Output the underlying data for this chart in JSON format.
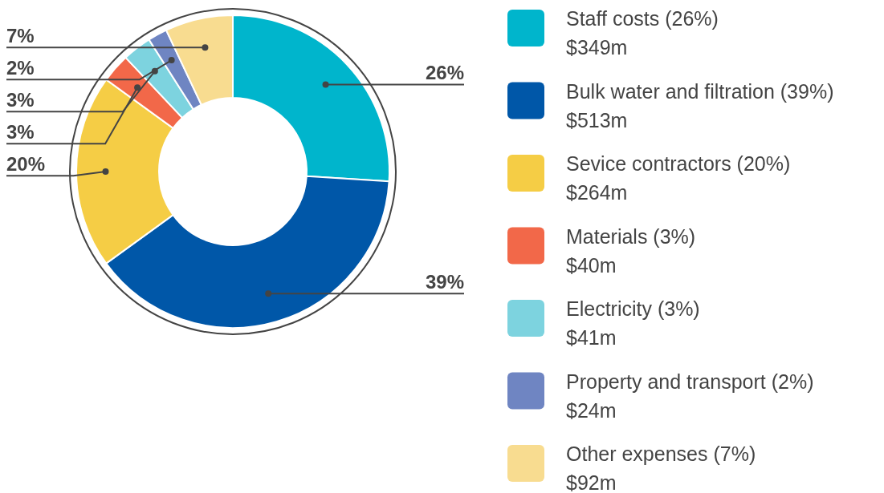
{
  "chart_data": {
    "type": "donut",
    "categories": [
      "Staff costs (26%)\n$349m",
      "Bulk water and filtration (39%)\n$513m",
      "Sevice contractors (20%)\n$264m",
      "Materials (3%)\n$40m",
      "Electricity (3%)\n$41m",
      "Property and transport (2%)\n$24m",
      "Other expenses (7%)\n$92m"
    ],
    "values": [
      26,
      39,
      20,
      3,
      3,
      2,
      7
    ],
    "value_labels": [
      "26%",
      "39%",
      "20%",
      "3%",
      "3%",
      "2%",
      "7%"
    ],
    "colors": [
      "#00b5cc",
      "#0057a8",
      "#f5cd45",
      "#f26849",
      "#7dd3df",
      "#6f85c2",
      "#f8dc90"
    ],
    "legend": "right"
  }
}
